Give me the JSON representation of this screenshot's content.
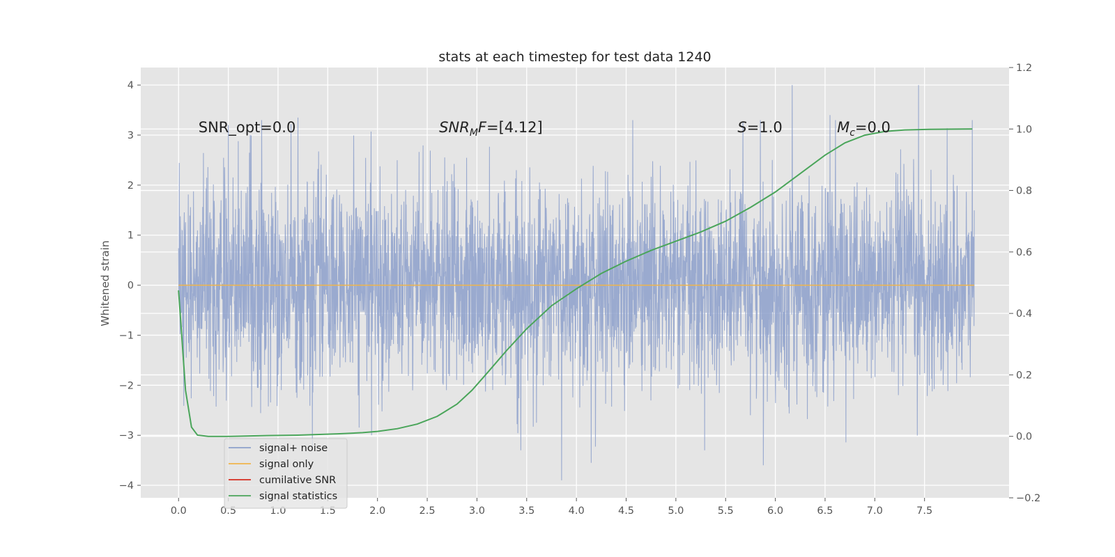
{
  "chart_data": {
    "type": "line",
    "title": "stats at each timestep for test data 1240",
    "ylabel": "Whitened strain",
    "xlabel": "",
    "xlim": [
      -0.38,
      8.35
    ],
    "ylim": [
      -4.25,
      4.35
    ],
    "y2lim": [
      -0.2,
      1.2
    ],
    "x_ticks": [
      "0.0",
      "0.5",
      "1.0",
      "1.5",
      "2.0",
      "2.5",
      "3.0",
      "3.5",
      "4.0",
      "4.5",
      "5.0",
      "5.5",
      "6.0",
      "6.5",
      "7.0",
      "7.5"
    ],
    "x_tick_values": [
      0,
      0.5,
      1,
      1.5,
      2,
      2.5,
      3,
      3.5,
      4,
      4.5,
      5,
      5.5,
      6,
      6.5,
      7,
      7.5
    ],
    "y_ticks": [
      "−4",
      "−3",
      "−2",
      "−1",
      "0",
      "1",
      "2",
      "3",
      "4"
    ],
    "y_tick_values": [
      -4,
      -3,
      -2,
      -1,
      0,
      1,
      2,
      3,
      4
    ],
    "y2_ticks": [
      "−0.2",
      "0.0",
      "0.2",
      "0.4",
      "0.6",
      "0.8",
      "1.0",
      "1.2"
    ],
    "y2_tick_values": [
      -0.2,
      0,
      0.2,
      0.4,
      0.6,
      0.8,
      1.0,
      1.2
    ],
    "grid": true,
    "legend_position": "lower-left",
    "annotations": [
      {
        "text": "SNR_opt=0.0",
        "x": 0.2,
        "y": 3.15
      },
      {
        "text": "SNR_MF=[4.12]",
        "x": 2.62,
        "y": 3.15
      },
      {
        "text": "S=1.0",
        "x": 5.62,
        "y": 3.15
      },
      {
        "text": "M_c=0.0",
        "x": 6.62,
        "y": 3.15
      }
    ],
    "series": [
      {
        "name": "signal+ noise",
        "axis": "left",
        "color": "#8da0cb",
        "kind": "noise",
        "x_range": [
          0,
          8.0
        ],
        "approx_peak_values": [
          [
            0.5,
            3.2
          ],
          [
            0.72,
            3.0
          ],
          [
            1.2,
            3.35
          ],
          [
            3.85,
            -3.9
          ],
          [
            4.15,
            -3.55
          ],
          [
            5.88,
            -3.6
          ],
          [
            6.17,
            4.0
          ],
          [
            6.55,
            3.4
          ],
          [
            7.44,
            4.0
          ],
          [
            7.98,
            3.3
          ]
        ]
      },
      {
        "name": "signal only",
        "axis": "left",
        "color": "#f0b44a",
        "x": [
          0,
          8.0
        ],
        "y": [
          0,
          0
        ]
      },
      {
        "name": "cumilative SNR",
        "axis": "left",
        "color": "#d62c1f",
        "x": [],
        "y": []
      },
      {
        "name": "signal statistics",
        "axis": "right",
        "color": "#4aa55a",
        "x": [
          0.0,
          0.07,
          0.13,
          0.19,
          0.3,
          0.5,
          0.8,
          1.2,
          1.6,
          1.85,
          2.0,
          2.2,
          2.4,
          2.6,
          2.8,
          2.95,
          3.1,
          3.3,
          3.5,
          3.75,
          4.0,
          4.25,
          4.5,
          4.75,
          5.0,
          5.25,
          5.5,
          5.75,
          6.0,
          6.25,
          6.5,
          6.7,
          6.9,
          7.1,
          7.3,
          7.55,
          7.98
        ],
        "y": [
          0.475,
          0.15,
          0.03,
          0.004,
          0.0,
          0.0,
          0.002,
          0.004,
          0.008,
          0.012,
          0.016,
          0.025,
          0.04,
          0.065,
          0.105,
          0.15,
          0.205,
          0.28,
          0.35,
          0.425,
          0.48,
          0.53,
          0.57,
          0.605,
          0.635,
          0.665,
          0.7,
          0.745,
          0.795,
          0.855,
          0.915,
          0.955,
          0.98,
          0.992,
          0.997,
          0.999,
          1.0
        ]
      }
    ]
  }
}
